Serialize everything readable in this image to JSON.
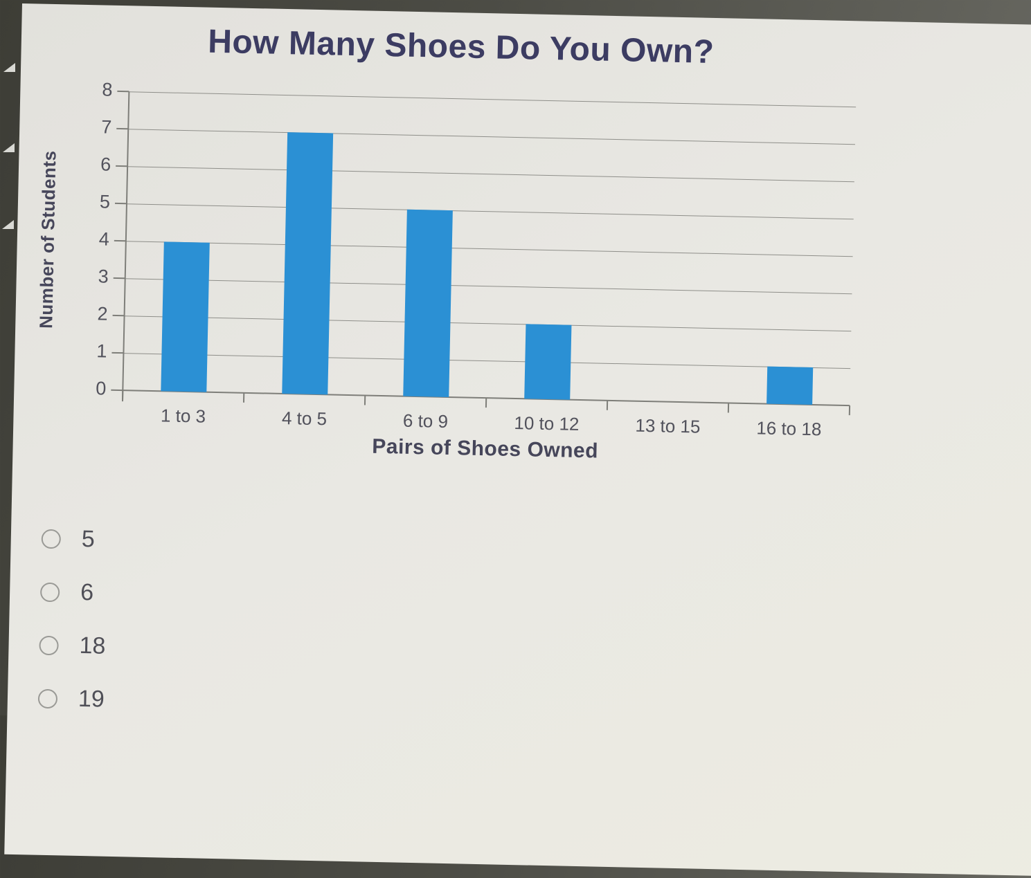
{
  "bezel": {
    "description": "dark screen bezel around photographed quiz panel",
    "arrow_color": "#d9d9d4",
    "dark_color": "#4c4c45"
  },
  "panel": {
    "background": "#e9e8e3"
  },
  "chart_data": {
    "type": "bar",
    "title": "How Many Shoes Do You Own?",
    "categories": [
      "1 to 3",
      "4 to 5",
      "6 to 9",
      "10 to 12",
      "13 to 15",
      "16 to 18"
    ],
    "values": [
      4,
      7,
      5,
      2,
      0,
      1
    ],
    "xlabel": "Pairs of Shoes Owned",
    "ylabel": "Number of Students",
    "ylim": [
      0,
      8
    ],
    "ytick_step": 1,
    "grid": true,
    "legend": false,
    "bar_color": "#2b90d4",
    "gridline_color": "#8e8e89",
    "axis_line_color": "#7e7e79",
    "title_color": "#3c3c62",
    "axis_text_color": "#52525c",
    "axis_label_color": "#46465a"
  },
  "options": {
    "items": [
      {
        "label": "5",
        "selected": false
      },
      {
        "label": "6",
        "selected": false
      },
      {
        "label": "18",
        "selected": false
      },
      {
        "label": "19",
        "selected": false
      }
    ]
  }
}
